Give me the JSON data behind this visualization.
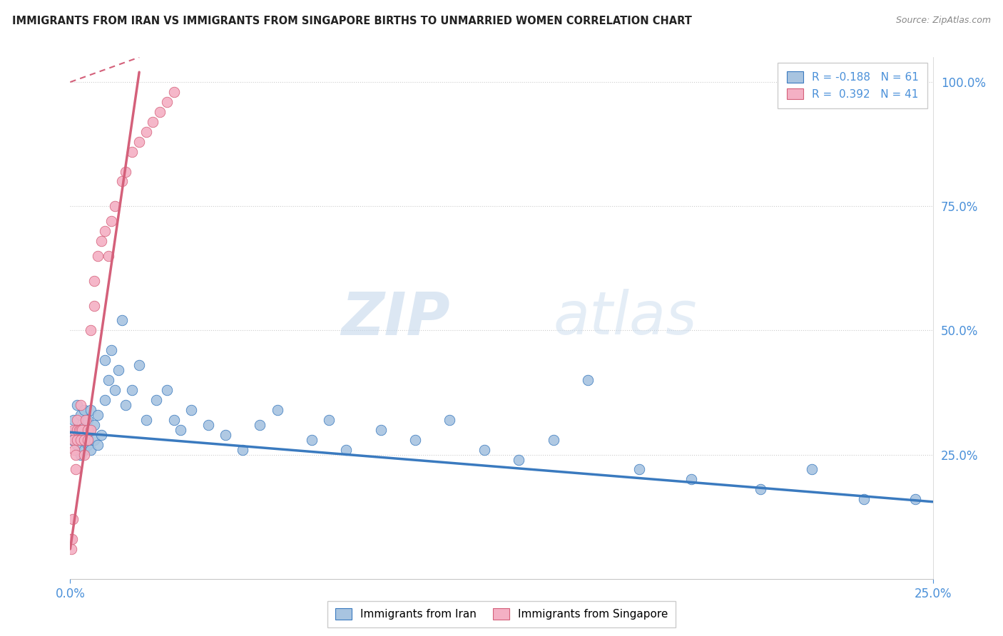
{
  "title": "IMMIGRANTS FROM IRAN VS IMMIGRANTS FROM SINGAPORE BIRTHS TO UNMARRIED WOMEN CORRELATION CHART",
  "source": "Source: ZipAtlas.com",
  "legend_iran": "Immigrants from Iran",
  "legend_singapore": "Immigrants from Singapore",
  "r_iran": -0.188,
  "n_iran": 61,
  "r_singapore": 0.392,
  "n_singapore": 41,
  "color_iran": "#a8c4e0",
  "color_singapore": "#f4b0c4",
  "trendline_iran": "#3a7abf",
  "trendline_singapore": "#d4607a",
  "watermark_zip": "ZIP",
  "watermark_atlas": "atlas",
  "xlim": [
    0.0,
    0.25
  ],
  "ylim": [
    0.0,
    1.05
  ],
  "yticks": [
    0.25,
    0.5,
    0.75,
    1.0
  ],
  "ytick_labels": [
    "25.0%",
    "50.0%",
    "75.0%",
    "100.0%"
  ],
  "iran_x": [
    0.0005,
    0.001,
    0.0015,
    0.002,
    0.002,
    0.0025,
    0.003,
    0.003,
    0.003,
    0.004,
    0.004,
    0.004,
    0.005,
    0.005,
    0.005,
    0.005,
    0.006,
    0.006,
    0.006,
    0.007,
    0.007,
    0.008,
    0.008,
    0.009,
    0.01,
    0.01,
    0.011,
    0.012,
    0.013,
    0.014,
    0.015,
    0.016,
    0.018,
    0.02,
    0.022,
    0.025,
    0.028,
    0.03,
    0.032,
    0.035,
    0.04,
    0.045,
    0.05,
    0.055,
    0.06,
    0.07,
    0.075,
    0.08,
    0.09,
    0.1,
    0.11,
    0.12,
    0.13,
    0.14,
    0.15,
    0.165,
    0.18,
    0.2,
    0.215,
    0.23,
    0.245
  ],
  "iran_y": [
    0.28,
    0.32,
    0.3,
    0.27,
    0.35,
    0.29,
    0.28,
    0.33,
    0.25,
    0.26,
    0.31,
    0.34,
    0.29,
    0.27,
    0.32,
    0.28,
    0.3,
    0.26,
    0.34,
    0.28,
    0.31,
    0.27,
    0.33,
    0.29,
    0.44,
    0.36,
    0.4,
    0.46,
    0.38,
    0.42,
    0.52,
    0.35,
    0.38,
    0.43,
    0.32,
    0.36,
    0.38,
    0.32,
    0.3,
    0.34,
    0.31,
    0.29,
    0.26,
    0.31,
    0.34,
    0.28,
    0.32,
    0.26,
    0.3,
    0.28,
    0.32,
    0.26,
    0.24,
    0.28,
    0.4,
    0.22,
    0.2,
    0.18,
    0.22,
    0.16,
    0.16
  ],
  "singapore_x": [
    0.0002,
    0.0003,
    0.0005,
    0.0007,
    0.001,
    0.001,
    0.0012,
    0.0015,
    0.0015,
    0.002,
    0.002,
    0.002,
    0.0025,
    0.003,
    0.003,
    0.003,
    0.0035,
    0.004,
    0.004,
    0.0045,
    0.005,
    0.005,
    0.006,
    0.006,
    0.007,
    0.007,
    0.008,
    0.009,
    0.01,
    0.011,
    0.012,
    0.013,
    0.015,
    0.016,
    0.018,
    0.02,
    0.022,
    0.024,
    0.026,
    0.028,
    0.03
  ],
  "singapore_y": [
    0.08,
    0.06,
    0.08,
    0.12,
    0.3,
    0.28,
    0.26,
    0.22,
    0.25,
    0.28,
    0.32,
    0.3,
    0.3,
    0.28,
    0.3,
    0.35,
    0.3,
    0.28,
    0.25,
    0.32,
    0.3,
    0.28,
    0.3,
    0.5,
    0.55,
    0.6,
    0.65,
    0.68,
    0.7,
    0.65,
    0.72,
    0.75,
    0.8,
    0.82,
    0.86,
    0.88,
    0.9,
    0.92,
    0.94,
    0.96,
    0.98
  ],
  "sg_trendline_x0": 0.0,
  "sg_trendline_y0": 0.06,
  "sg_trendline_x1": 0.02,
  "sg_trendline_y1": 1.02,
  "sg_trendline_dash_x0": 0.0,
  "sg_trendline_dash_y0": 1.02,
  "sg_trendline_dash_x1": 0.022,
  "sg_trendline_dash_y1": 1.05,
  "iran_trendline_x0": 0.0,
  "iran_trendline_y0": 0.295,
  "iran_trendline_x1": 0.25,
  "iran_trendline_y1": 0.155
}
